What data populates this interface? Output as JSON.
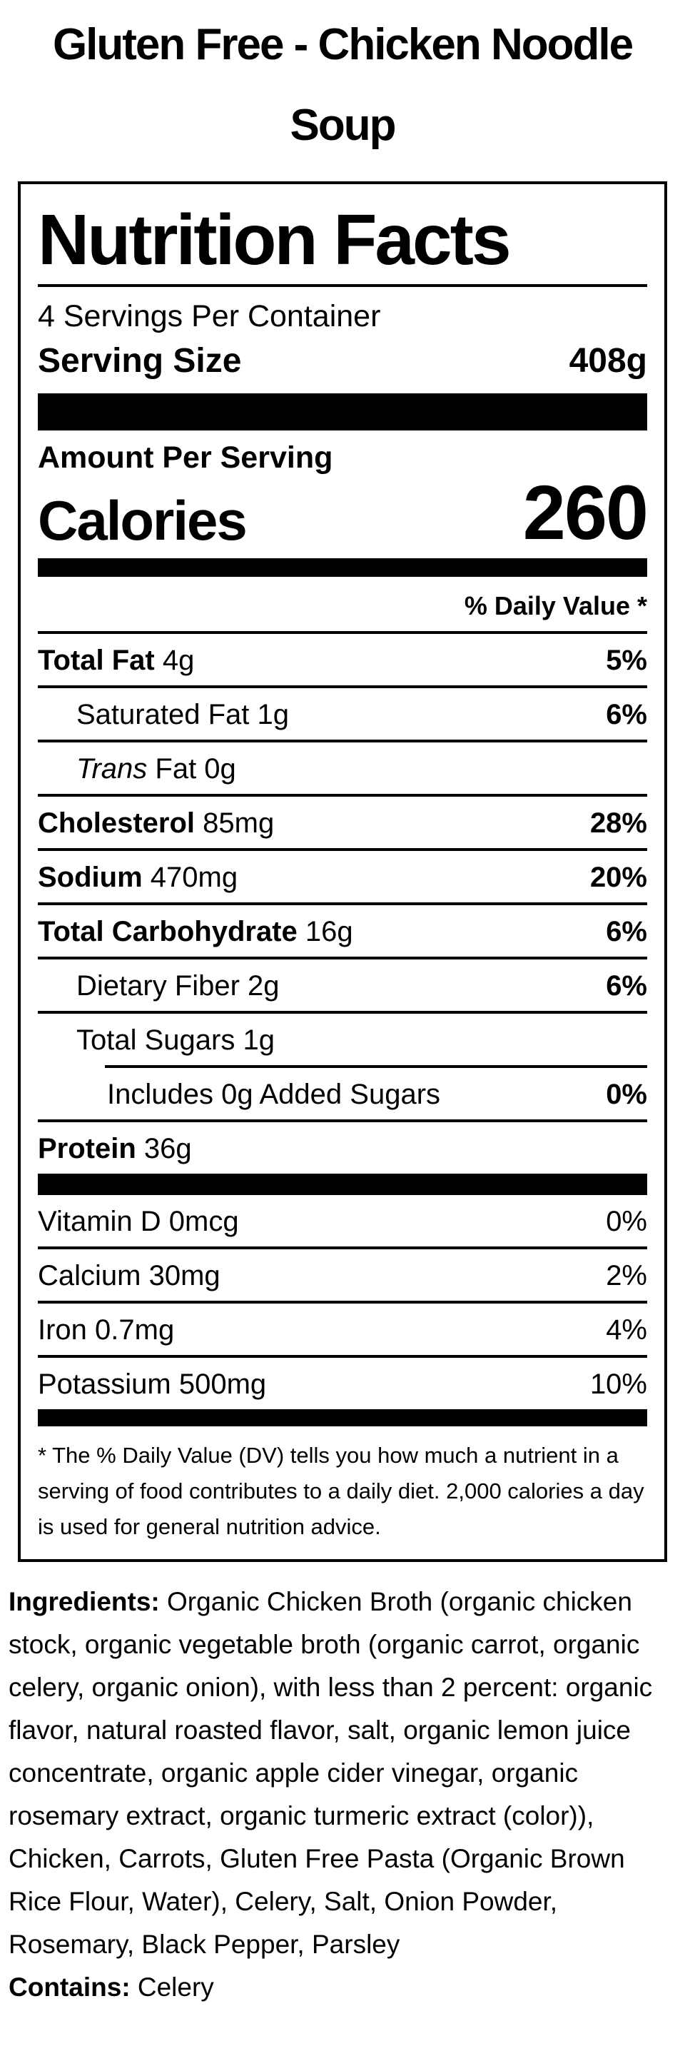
{
  "page_title": "Gluten Free - Chicken Noodle Soup",
  "label": {
    "heading": "Nutrition Facts",
    "servings_per_container": "4 Servings Per Container",
    "serving_size_label": "Serving Size",
    "serving_size_value": "408g",
    "amount_per_serving": "Amount Per Serving",
    "calories_label": "Calories",
    "calories_value": "260",
    "daily_value_header": "% Daily Value *",
    "nutrients": [
      {
        "bold": "Total Fat",
        "italic": "",
        "text": " 4g",
        "dv": "5%",
        "dv_bold": true,
        "indent": 0,
        "rule": "full"
      },
      {
        "bold": "",
        "italic": "",
        "text": "Saturated Fat 1g",
        "dv": "6%",
        "dv_bold": true,
        "indent": 1,
        "rule": "full"
      },
      {
        "bold": "",
        "italic": "Trans",
        "text": " Fat 0g",
        "dv": "",
        "dv_bold": false,
        "indent": 1,
        "rule": "full"
      },
      {
        "bold": "Cholesterol",
        "italic": "",
        "text": " 85mg",
        "dv": "28%",
        "dv_bold": true,
        "indent": 0,
        "rule": "full"
      },
      {
        "bold": "Sodium",
        "italic": "",
        "text": " 470mg",
        "dv": "20%",
        "dv_bold": true,
        "indent": 0,
        "rule": "full"
      },
      {
        "bold": "Total Carbohydrate",
        "italic": "",
        "text": " 16g",
        "dv": "6%",
        "dv_bold": true,
        "indent": 0,
        "rule": "full"
      },
      {
        "bold": "",
        "italic": "",
        "text": "Dietary Fiber 2g",
        "dv": "6%",
        "dv_bold": true,
        "indent": 1,
        "rule": "full"
      },
      {
        "bold": "",
        "italic": "",
        "text": "Total Sugars 1g",
        "dv": "",
        "dv_bold": false,
        "indent": 1,
        "rule": "indent"
      },
      {
        "bold": "",
        "italic": "",
        "text": "Includes 0g Added Sugars",
        "dv": "0%",
        "dv_bold": true,
        "indent": 2,
        "rule": "full"
      },
      {
        "bold": "Protein",
        "italic": "",
        "text": " 36g",
        "dv": "",
        "dv_bold": false,
        "indent": 0,
        "rule": "none"
      }
    ],
    "vitamins": [
      {
        "bold": "",
        "italic": "",
        "text": "Vitamin D 0mcg",
        "dv": "0%",
        "dv_bold": false,
        "indent": 0,
        "rule": "full"
      },
      {
        "bold": "",
        "italic": "",
        "text": "Calcium 30mg",
        "dv": "2%",
        "dv_bold": false,
        "indent": 0,
        "rule": "full"
      },
      {
        "bold": "",
        "italic": "",
        "text": "Iron 0.7mg",
        "dv": "4%",
        "dv_bold": false,
        "indent": 0,
        "rule": "full"
      },
      {
        "bold": "",
        "italic": "",
        "text": "Potassium 500mg",
        "dv": "10%",
        "dv_bold": false,
        "indent": 0,
        "rule": "none"
      }
    ],
    "footnote": "* The % Daily Value (DV) tells you how much a nutrient in a serving of food contributes to a daily diet. 2,000 calories a day is used for general nutrition advice."
  },
  "ingredients": {
    "label": "Ingredients:",
    "text": " Organic Chicken Broth (organic chicken stock, organic vegetable broth (organic carrot, organic celery, organic onion), with less than 2 percent: organic flavor, natural roasted flavor, salt, organic lemon juice concentrate, organic apple cider vinegar, organic rosemary extract, organic turmeric extract (color)), Chicken, Carrots, Gluten Free Pasta (Organic Brown Rice Flour, Water), Celery, Salt, Onion Powder, Rosemary, Black Pepper, Parsley",
    "contains_label": "Contains:",
    "contains_text": " Celery"
  },
  "colors": {
    "text": "#000000",
    "background": "#ffffff"
  }
}
